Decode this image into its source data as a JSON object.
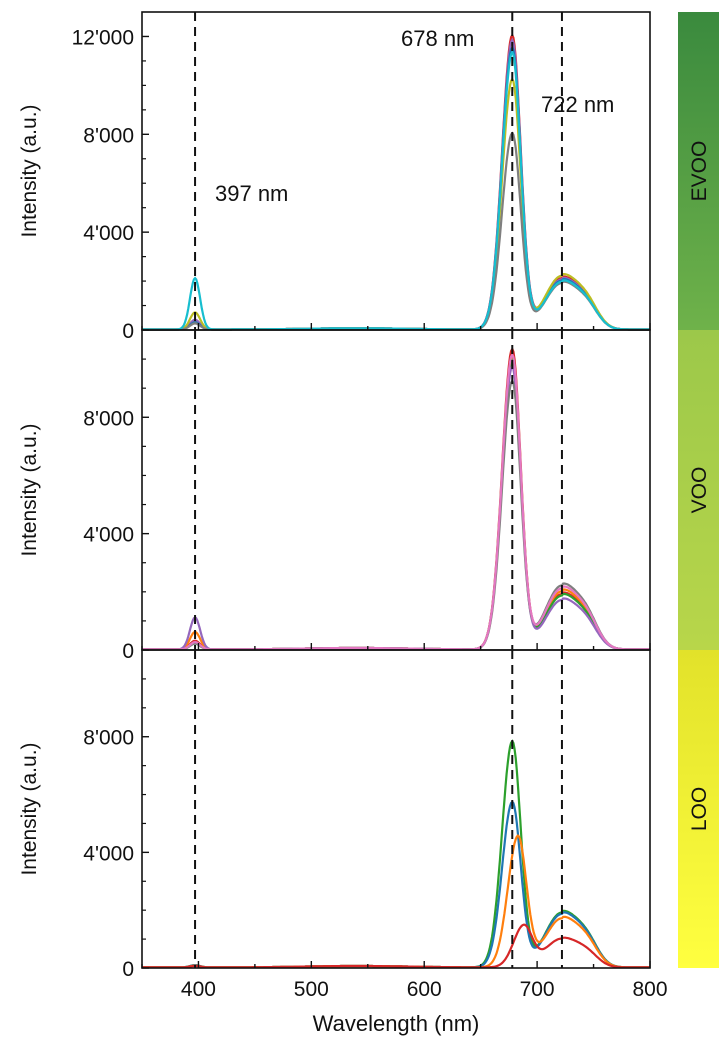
{
  "chart_data": {
    "type": "line",
    "xlabel": "Wavelength (nm)",
    "ylabel": "Intensity (a.u.)",
    "xlim": [
      350,
      800
    ],
    "x_ticks": [
      "400",
      "500",
      "600",
      "700",
      "800"
    ],
    "reference_lines_nm": [
      397,
      678,
      722
    ],
    "annotations": [
      "397 nm",
      "678 nm",
      "722 nm"
    ],
    "panels": [
      {
        "label": "EVOO",
        "label_color_top": "#3a8a3e",
        "label_color_bottom": "#6fb24a",
        "ylim": [
          0,
          13000
        ],
        "y_ticks": [
          0,
          4000,
          8000,
          12000
        ],
        "y_tick_labels": [
          "0",
          "4'000",
          "8'000",
          "12'000"
        ],
        "curves": [
          {
            "color": "#d62728",
            "p397": 350,
            "p678": 12000,
            "p722": 2100
          },
          {
            "color": "#9467bd",
            "p397": 400,
            "p678": 11800,
            "p722": 2050
          },
          {
            "color": "#1f77b4",
            "p397": 300,
            "p678": 11500,
            "p722": 2000
          },
          {
            "color": "#bcbd22",
            "p397": 700,
            "p678": 10200,
            "p722": 2200
          },
          {
            "color": "#7f7f7f",
            "p397": 250,
            "p678": 8000,
            "p722": 1900
          },
          {
            "color": "#17becf",
            "p397": 2100,
            "p678": 11300,
            "p722": 1950
          }
        ]
      },
      {
        "label": "VOO",
        "label_color_top": "#9cc84a",
        "label_color_bottom": "#b8d64a",
        "ylim": [
          0,
          11000
        ],
        "y_ticks": [
          0,
          4000,
          8000
        ],
        "y_tick_labels": [
          "0",
          "4'000",
          "8'000"
        ],
        "curves": [
          {
            "color": "#d62728",
            "p397": 300,
            "p678": 10300,
            "p722": 1900
          },
          {
            "color": "#ff7f0e",
            "p397": 600,
            "p678": 10000,
            "p722": 2000
          },
          {
            "color": "#2ca02c",
            "p397": 200,
            "p678": 9900,
            "p722": 1850
          },
          {
            "color": "#9467bd",
            "p397": 1100,
            "p678": 9700,
            "p722": 1700
          },
          {
            "color": "#7f7f7f",
            "p397": 200,
            "p678": 9200,
            "p722": 2200
          },
          {
            "color": "#e377c2",
            "p397": 250,
            "p678": 10100,
            "p722": 2100
          }
        ]
      },
      {
        "label": "LOO",
        "label_color_top": "#e2e22a",
        "label_color_bottom": "#ffff40",
        "ylim": [
          0,
          11000
        ],
        "y_ticks": [
          0,
          4000,
          8000
        ],
        "y_tick_labels": [
          "0",
          "4'000",
          "8'000"
        ],
        "curves": [
          {
            "color": "#2ca02c",
            "p397": 80,
            "p678": 7800,
            "p722": 1900
          },
          {
            "color": "#1f77b4",
            "p397": 80,
            "p678": 5700,
            "p722": 1850
          },
          {
            "color": "#ff7f0e",
            "p397": 60,
            "p678": 4500,
            "p722": 1700,
            "shift": 5
          },
          {
            "color": "#d62728",
            "p397": 50,
            "p678": 1400,
            "p722": 1000,
            "shift": 10
          }
        ]
      }
    ]
  }
}
